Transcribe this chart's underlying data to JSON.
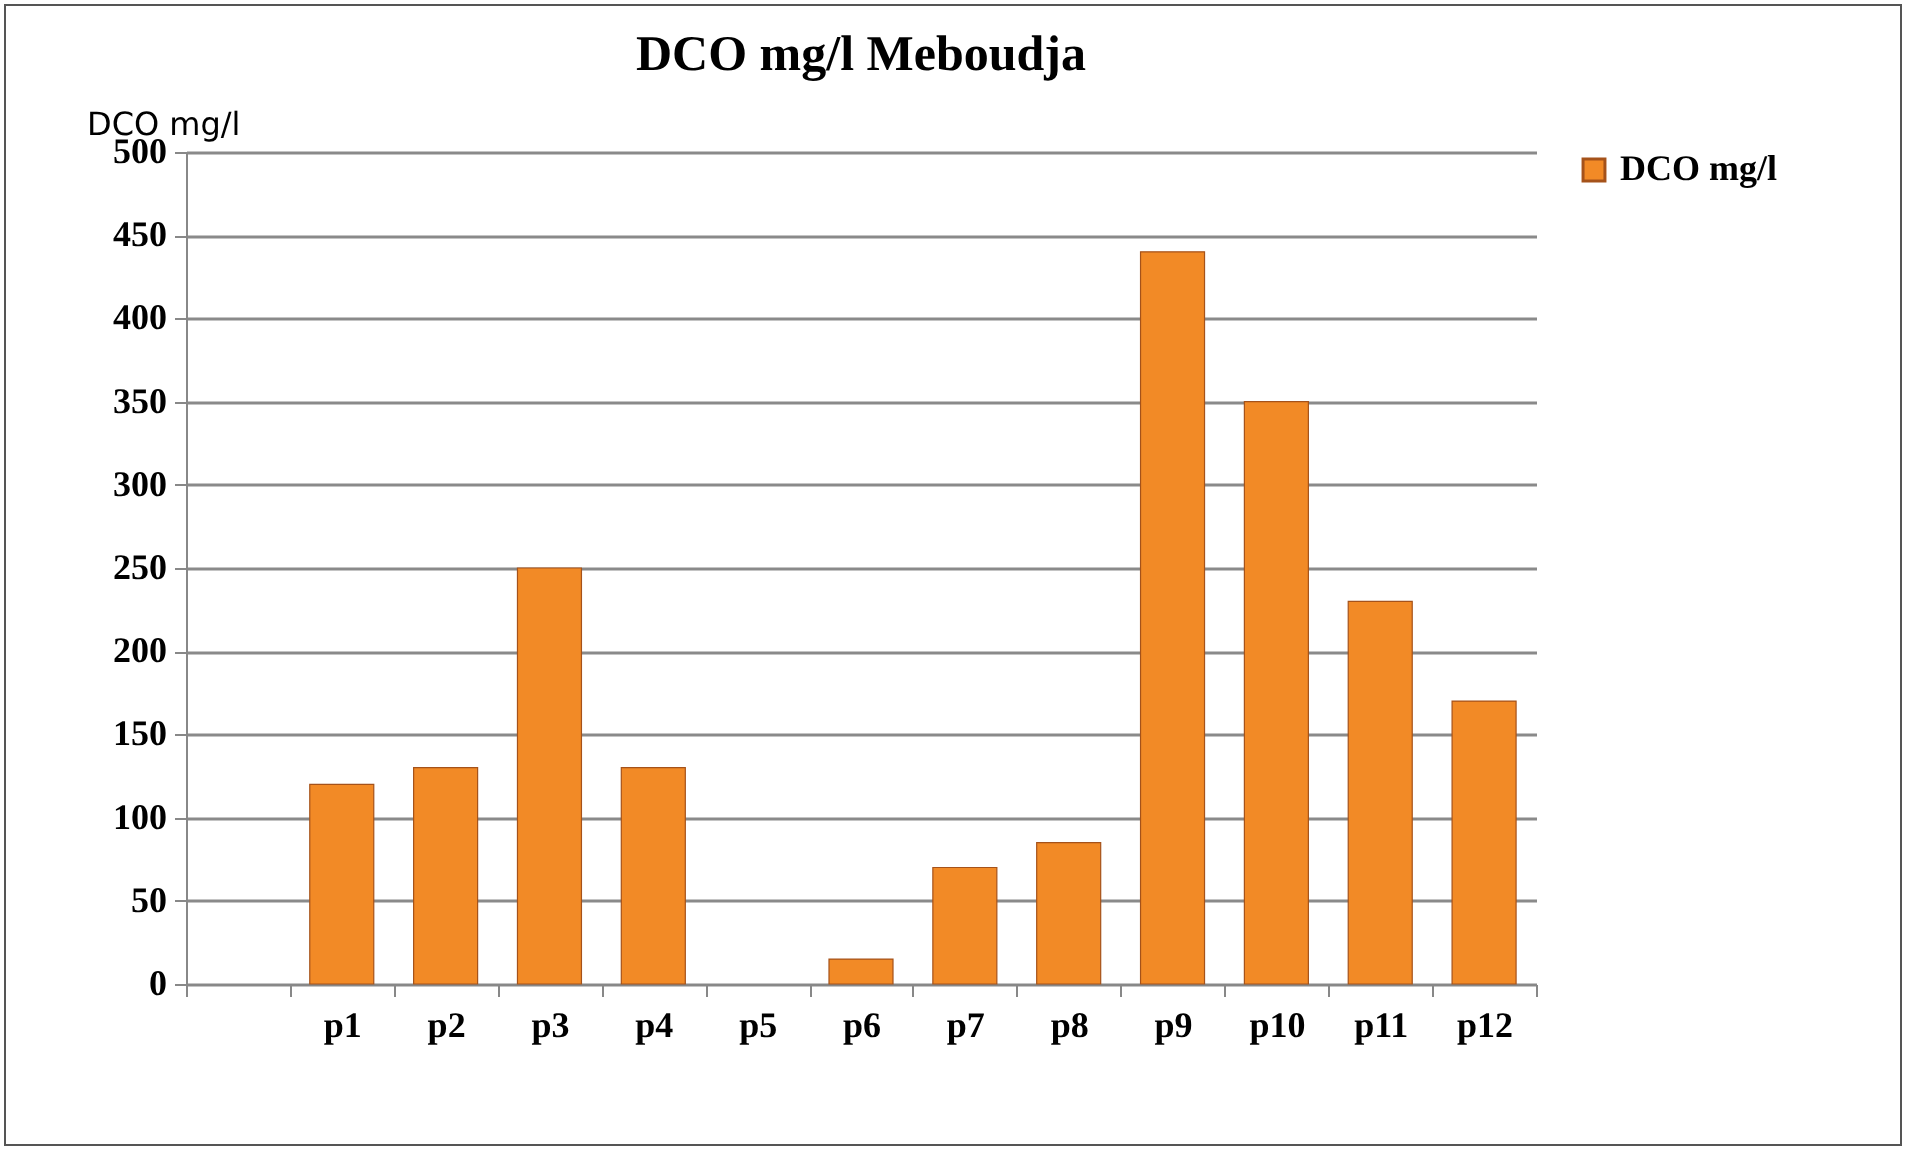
{
  "chart_data": {
    "type": "bar",
    "title": "DCO mg/l Meboudja",
    "ylabel": "DCO mg/l",
    "categories": [
      null,
      "p1",
      "p2",
      "p3",
      "p4",
      "p5",
      "p6",
      "p7",
      "p8",
      "p9",
      "p10",
      "p11",
      "p12"
    ],
    "series": [
      {
        "name": "DCO mg/l",
        "color": "#f28a26",
        "values": [
          null,
          120,
          130,
          250,
          130,
          null,
          15,
          70,
          85,
          440,
          350,
          230,
          170
        ]
      }
    ],
    "ylim": [
      0,
      500
    ],
    "yticks": [
      0,
      50,
      100,
      150,
      200,
      250,
      300,
      350,
      400,
      450,
      500
    ],
    "grid": "y",
    "legend": "right"
  }
}
